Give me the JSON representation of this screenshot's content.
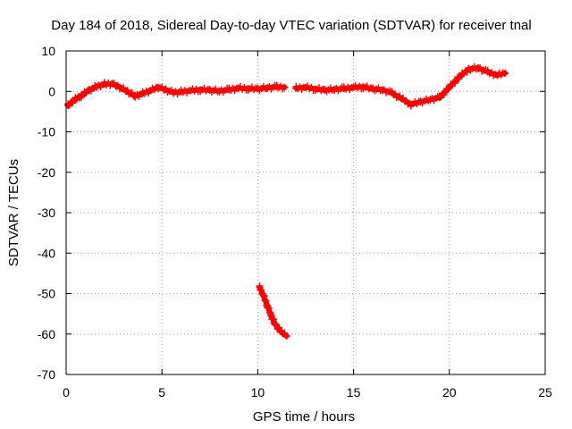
{
  "chart_data": {
    "type": "scatter",
    "title": "Day 184 of 2018, Sidereal Day-to-day VTEC variation (SDTVAR) for receiver tnal",
    "xlabel": "GPS time / hours",
    "ylabel": "SDTVAR / TECUs",
    "xlim": [
      0,
      25
    ],
    "ylim": [
      -70,
      10
    ],
    "xticks": [
      0,
      5,
      10,
      15,
      20,
      25
    ],
    "yticks": [
      10,
      0,
      -10,
      -20,
      -30,
      -40,
      -50,
      -60,
      -70
    ],
    "grid": true,
    "marker": "plus",
    "color": "#ff0000",
    "series": [
      {
        "name": "SDTVAR segment 1",
        "x": [
          0.1,
          0.4,
          0.8,
          1.2,
          1.6,
          2.0,
          2.4,
          2.8,
          3.2,
          3.6,
          4.0,
          4.4,
          4.8,
          5.2,
          5.6,
          6.0,
          6.5,
          7.0,
          7.5,
          8.0,
          8.5,
          9.0,
          9.5,
          10.0,
          10.5,
          11.0,
          11.4
        ],
        "y": [
          -3.5,
          -2.2,
          -1.0,
          0.3,
          1.2,
          1.8,
          1.9,
          1.0,
          0.0,
          -1.2,
          -0.5,
          0.2,
          1.0,
          0.4,
          -0.3,
          -0.1,
          0.2,
          0.4,
          0.3,
          0.1,
          0.4,
          0.8,
          0.7,
          0.6,
          0.9,
          1.1,
          1.0
        ]
      },
      {
        "name": "SDTVAR segment 2",
        "x": [
          12.0,
          12.5,
          13.0,
          13.5,
          14.0,
          14.5,
          15.0,
          15.5,
          16.0,
          16.5,
          17.0,
          17.5,
          18.0,
          18.5,
          19.0,
          19.5,
          20.0,
          20.5,
          21.0,
          21.5,
          22.0,
          22.5,
          22.9
        ],
        "y": [
          0.8,
          1.0,
          0.6,
          0.3,
          0.5,
          0.7,
          1.0,
          1.1,
          0.6,
          0.4,
          -0.4,
          -1.8,
          -3.2,
          -2.6,
          -2.0,
          -1.5,
          1.0,
          3.5,
          5.5,
          5.8,
          4.8,
          4.0,
          4.5
        ]
      },
      {
        "name": "SDTVAR segment 3",
        "x": [
          10.1,
          10.3,
          10.5,
          10.7,
          10.9,
          11.1,
          11.3,
          11.5
        ],
        "y": [
          -48.5,
          -50.5,
          -53.0,
          -55.5,
          -57.5,
          -58.8,
          -59.8,
          -60.5
        ]
      }
    ]
  }
}
